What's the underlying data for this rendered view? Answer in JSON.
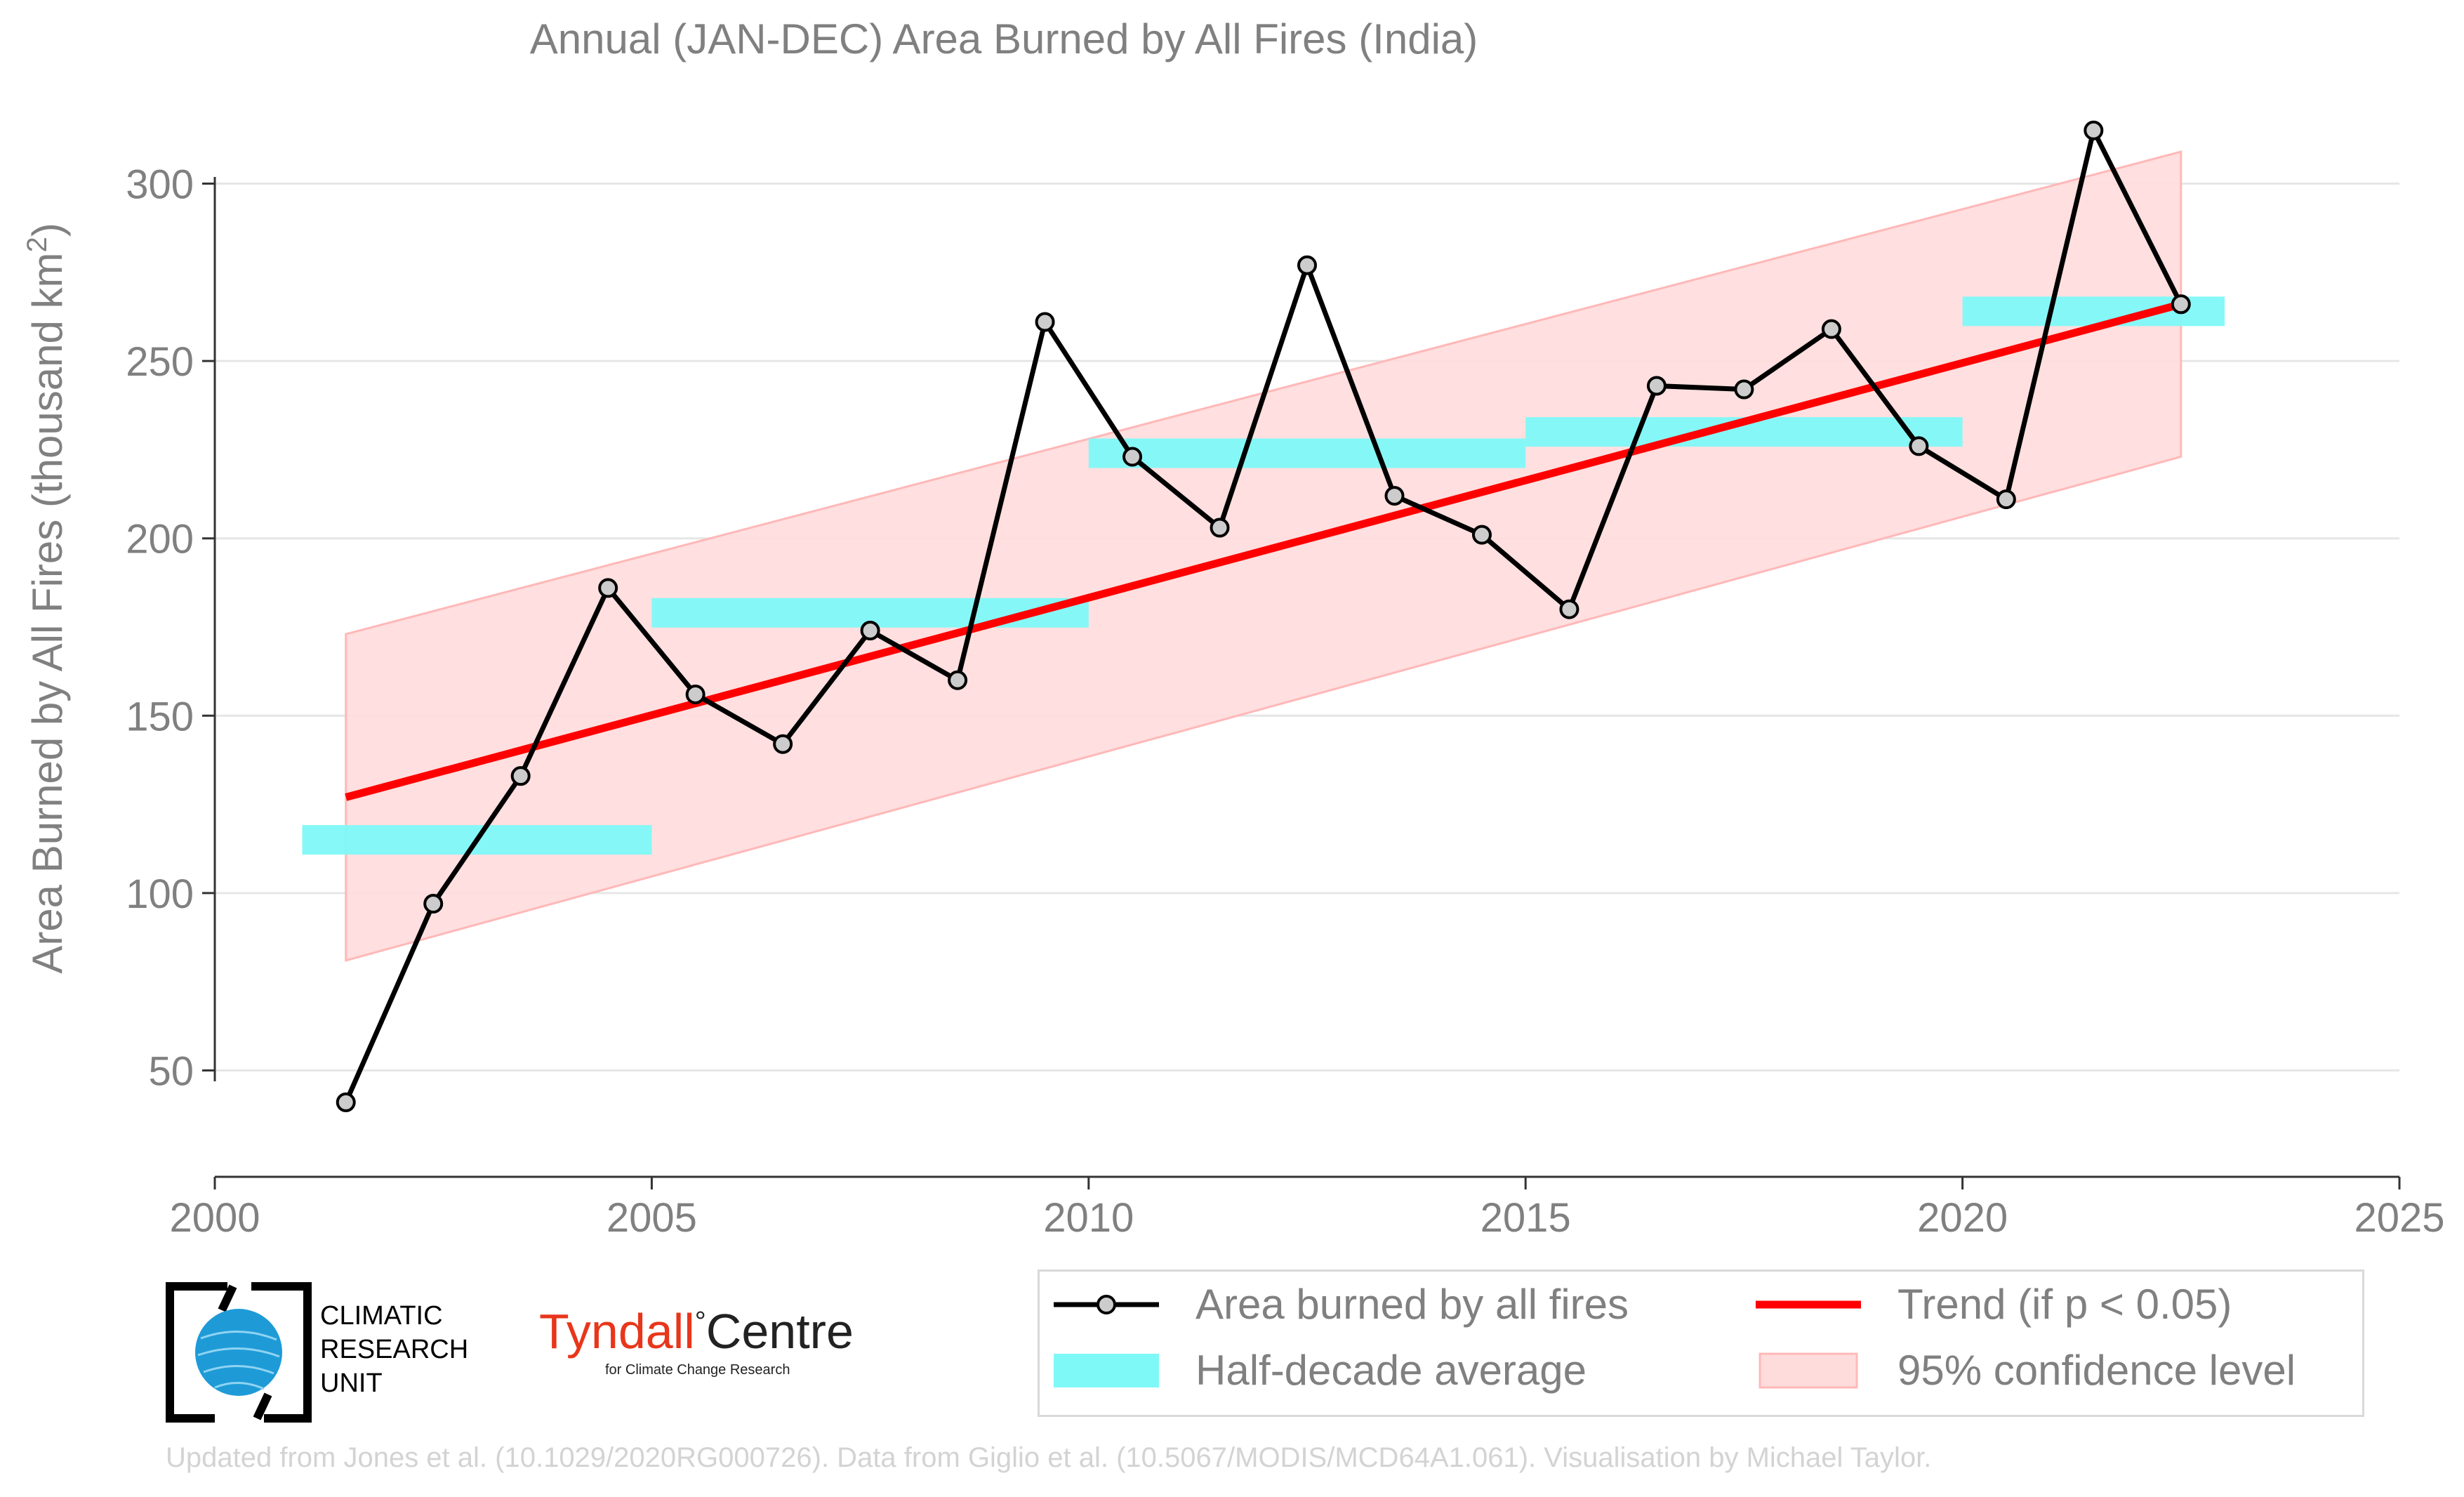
{
  "chart_data": {
    "type": "line",
    "title": "Annual (JAN-DEC) Area Burned by All Fires (India)",
    "ylabel_main": "Area Burned by All Fires (thousand km",
    "ylabel_sup": "2",
    "ylabel_close": ")",
    "xlim": [
      2000,
      2025
    ],
    "ylim": [
      20,
      330
    ],
    "x_ticks": [
      2000,
      2005,
      2010,
      2015,
      2020,
      2025
    ],
    "y_ticks": [
      50,
      100,
      150,
      200,
      250,
      300
    ],
    "grid": true,
    "series": [
      {
        "name": "Area burned by all fires",
        "x": [
          2001.5,
          2002.5,
          2003.5,
          2004.5,
          2005.5,
          2006.5,
          2007.5,
          2008.5,
          2009.5,
          2010.5,
          2011.5,
          2012.5,
          2013.5,
          2014.5,
          2015.5,
          2016.5,
          2017.5,
          2018.5,
          2019.5,
          2020.5,
          2021.5,
          2022.5
        ],
        "y": [
          41,
          97,
          133,
          186,
          156,
          142,
          174,
          160,
          261,
          223,
          203,
          277,
          212,
          201,
          180,
          243,
          242,
          259,
          226,
          211,
          315,
          266
        ],
        "color": "#000000"
      }
    ],
    "half_decade_average": {
      "name": "Half-decade average",
      "color": "#7ff8f8",
      "segments": [
        {
          "x0": 2001,
          "x1": 2005,
          "y": 115
        },
        {
          "x0": 2005,
          "x1": 2010,
          "y": 179
        },
        {
          "x0": 2010,
          "x1": 2015,
          "y": 224
        },
        {
          "x0": 2015,
          "x1": 2020,
          "y": 230
        },
        {
          "x0": 2020,
          "x1": 2023,
          "y": 264
        }
      ]
    },
    "trend": {
      "name": "Trend (if p < 0.05)",
      "color": "#ff0000",
      "x": [
        2001.5,
        2022.5
      ],
      "y": [
        127,
        266
      ]
    },
    "confidence_band": {
      "name": "95% confidence level",
      "color": "#ffdcdc",
      "x": [
        2001.5,
        2022.5
      ],
      "upper": [
        173,
        309
      ],
      "lower": [
        81,
        223
      ]
    },
    "legend_position": "bottom-right"
  },
  "logos": {
    "cru_line1": "CLIMATIC",
    "cru_line2": "RESEARCH",
    "cru_line3": "UNIT",
    "tyndall_name": "Tyndall",
    "tyndall_degree": "°",
    "tyndall_centre": "Centre",
    "tyndall_sub": "for Climate Change Research"
  },
  "footer": "Updated from Jones et al. (10.1029/2020RG000726). Data from Giglio et al. (10.5067/MODIS/MCD64A1.061). Visualisation by Michael Taylor."
}
